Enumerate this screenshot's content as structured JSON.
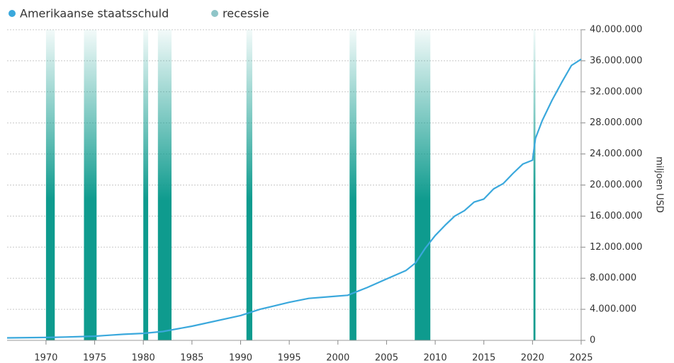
{
  "chart_data": {
    "type": "line",
    "axis_label": "miljoen USD",
    "xlim": [
      1966,
      2025
    ],
    "xticks": [
      1970,
      1975,
      1980,
      1985,
      1990,
      1995,
      2000,
      2005,
      2010,
      2015,
      2020,
      2025
    ],
    "ylim": [
      0,
      40000000
    ],
    "yticks": [
      0,
      {
        "value": 4000000,
        "label": "4.000.000"
      },
      {
        "value": 8000000,
        "label": "8.000.000"
      },
      {
        "value": 12000000,
        "label": "12.000.000"
      },
      {
        "value": 16000000,
        "label": "16.000.000"
      },
      {
        "value": 20000000,
        "label": "20.000.000"
      },
      {
        "value": 24000000,
        "label": "24.000.000"
      },
      {
        "value": 28000000,
        "label": "28.000.000"
      },
      {
        "value": 32000000,
        "label": "32.000.000"
      },
      {
        "value": 36000000,
        "label": "36.000.000"
      },
      {
        "value": 40000000,
        "label": "40.000.000"
      }
    ],
    "grid": true,
    "series": [
      {
        "name": "Amerikaanse staatsschuld",
        "color": "#3aa8dc",
        "x": [
          1966,
          1970,
          1971,
          1972,
          1975,
          1976,
          1978,
          1980,
          1982,
          1985,
          1990,
          1992,
          1995,
          1997,
          2000,
          2001,
          2003,
          2005,
          2007,
          2008,
          2009,
          2010,
          2011,
          2012,
          2013,
          2014,
          2015,
          2016,
          2017,
          2018,
          2019,
          2020,
          2020.3,
          2021,
          2022,
          2023,
          2024,
          2025
        ],
        "values": [
          320000,
          370000,
          400000,
          430000,
          540000,
          620000,
          780000,
          900000,
          1140000,
          1820000,
          3200000,
          4000000,
          4900000,
          5400000,
          5700000,
          5800000,
          6800000,
          7900000,
          9000000,
          10000000,
          11900000,
          13500000,
          14800000,
          16000000,
          16700000,
          17800000,
          18200000,
          19500000,
          20200000,
          21500000,
          22700000,
          23200000,
          26000000,
          28300000,
          30900000,
          33200000,
          35400000,
          36200000
        ]
      }
    ],
    "recession": {
      "name": "recessie",
      "color": "#0e9b8e",
      "legend_color": "#8fc5c8",
      "starts": [
        1970.0,
        1973.9,
        1980.0,
        1981.5,
        1990.6,
        2001.2,
        2007.9,
        2020.1
      ],
      "ends": [
        1970.9,
        1975.2,
        1980.5,
        1982.9,
        1991.2,
        2001.9,
        2009.5,
        2020.3
      ]
    }
  }
}
